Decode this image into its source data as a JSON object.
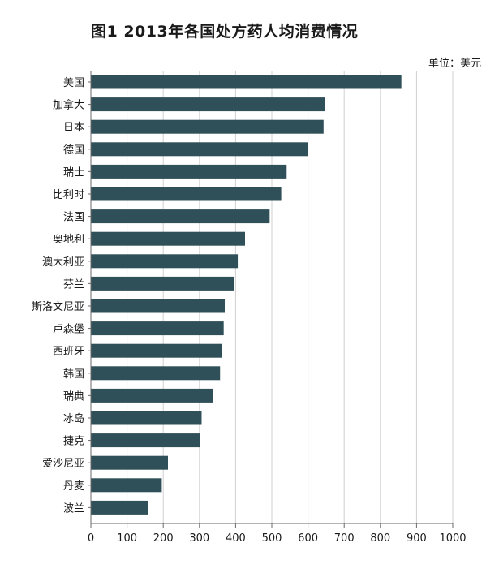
{
  "chart_data": {
    "type": "bar",
    "orientation": "horizontal",
    "title": "图1  2013年各国处方药人均消费情况",
    "unit_label": "单位：美元",
    "categories": [
      "美国",
      "加拿大",
      "日本",
      "德国",
      "瑞士",
      "比利时",
      "法国",
      "奥地利",
      "澳大利亚",
      "芬兰",
      "斯洛文尼亚",
      "卢森堡",
      "西班牙",
      "韩国",
      "瑞典",
      "冰岛",
      "捷克",
      "爱沙尼亚",
      "丹麦",
      "波兰"
    ],
    "values": [
      858,
      647,
      643,
      600,
      541,
      526,
      494,
      426,
      406,
      396,
      370,
      367,
      361,
      357,
      337,
      306,
      302,
      213,
      196,
      159
    ],
    "xlim": [
      0,
      1000
    ],
    "xticks": [
      0,
      100,
      200,
      300,
      400,
      500,
      600,
      700,
      800,
      900,
      1000
    ],
    "xlabel": "",
    "ylabel": "",
    "grid": "vertical",
    "legend": "none",
    "colors": {
      "bar": "#2f4f59",
      "grid": "#cfcfcf",
      "axis": "#6a6a6a"
    }
  }
}
